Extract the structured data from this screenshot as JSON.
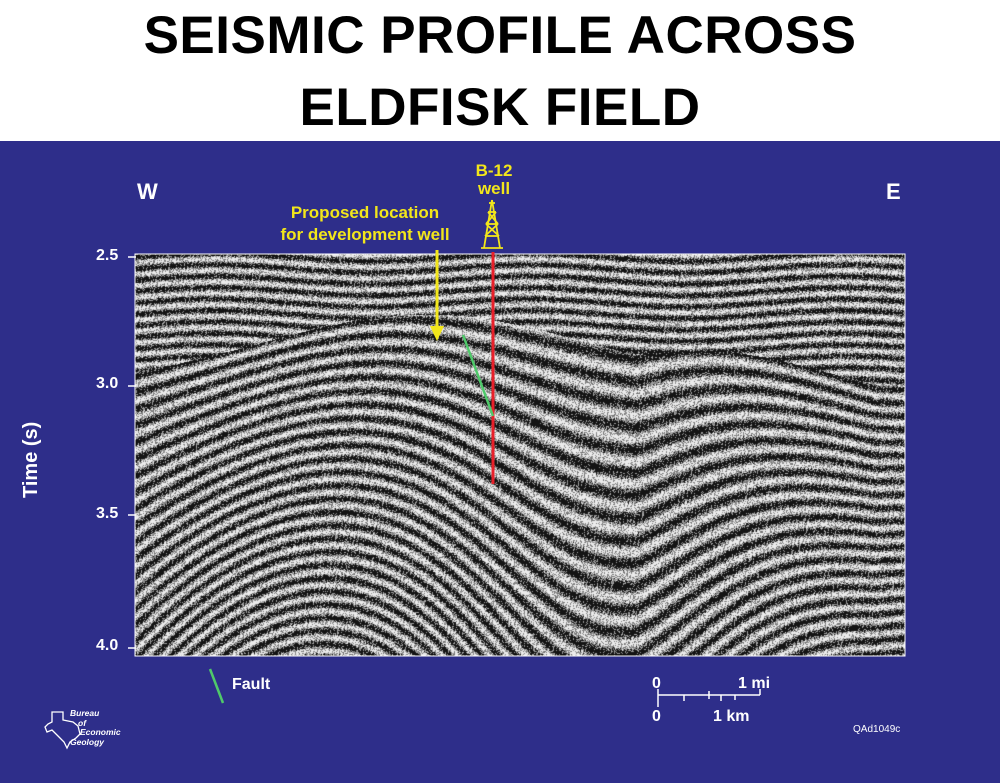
{
  "title_line1": "SEISMIC PROFILE ACROSS",
  "title_line2": "ELDFISK FIELD",
  "direction_west": "W",
  "direction_east": "E",
  "yaxis_label": "Time (s)",
  "yaxis_ticks": [
    "2.5",
    "3.0",
    "3.5",
    "4.0"
  ],
  "well_label_line1": "B-12",
  "well_label_line2": "well",
  "proposed_line1": "Proposed location",
  "proposed_line2": "for development well",
  "legend_fault": "Fault",
  "scale_mi_zero": "0",
  "scale_mi_one": "1 mi",
  "scale_km_zero": "0",
  "scale_km_one": "1 km",
  "logo_text": [
    "Bureau",
    "of",
    "Economic",
    "Geology"
  ],
  "figure_id": "QAd1049c",
  "colors": {
    "background": "#2e2e8a",
    "annotation_text": "#f2e61b",
    "well_line": "#e8202a",
    "fault_line": "#4fc96a"
  }
}
